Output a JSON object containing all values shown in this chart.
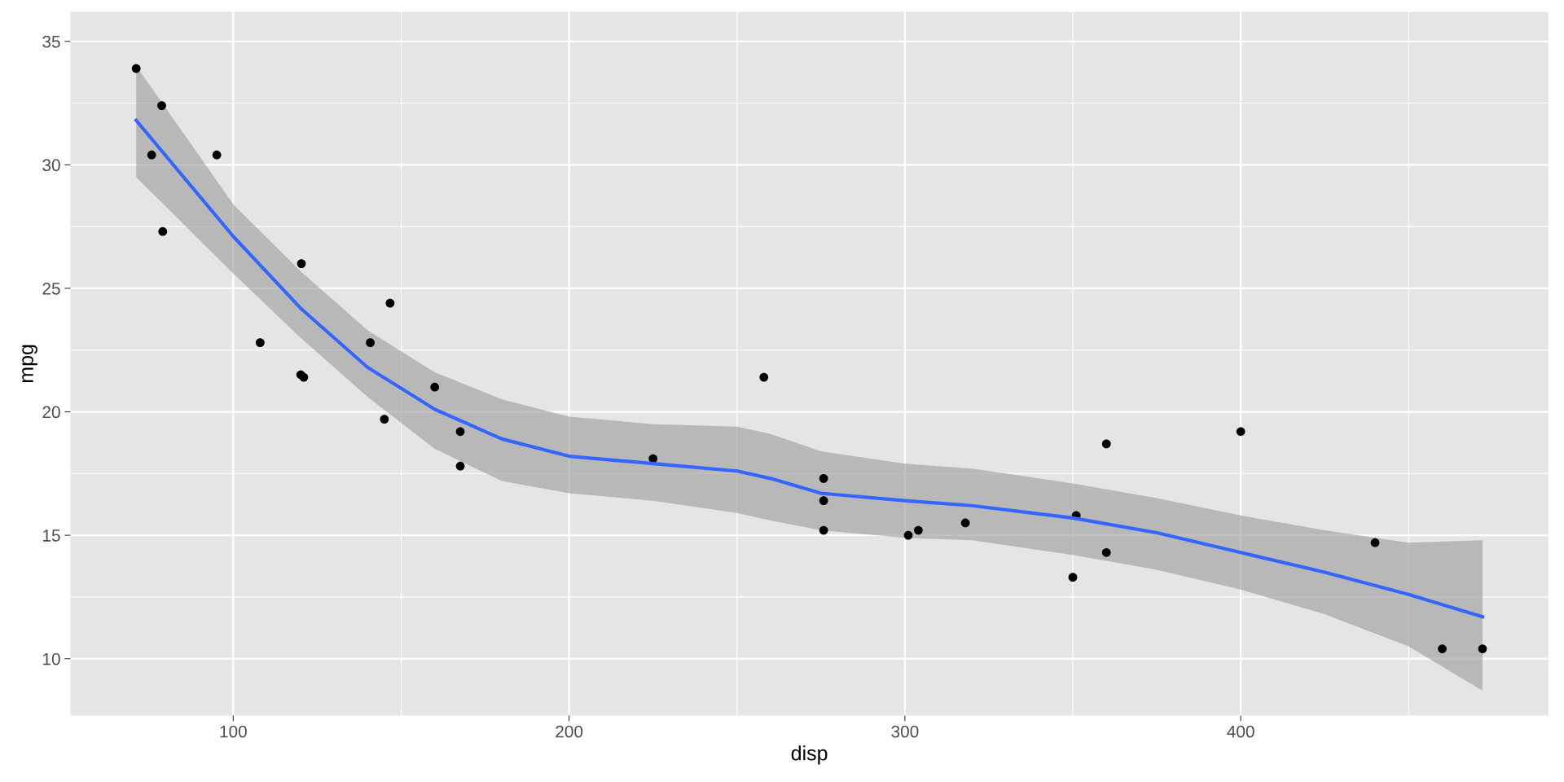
{
  "chart_data": {
    "type": "scatter",
    "xlabel": "disp",
    "ylabel": "mpg",
    "xlim": [
      51.5,
      491.6
    ],
    "ylim": [
      7.7,
      36.2
    ],
    "xticks": [
      100,
      200,
      300,
      400
    ],
    "yticks": [
      10,
      15,
      20,
      25,
      30,
      35
    ],
    "grid": true,
    "series": [
      {
        "marker": "circle",
        "color": "#000000",
        "x": [
          160,
          108,
          258,
          360,
          225,
          360,
          146.7,
          140.8,
          167.6,
          167.6,
          275.8,
          275.8,
          275.8,
          472,
          460,
          440,
          78.7,
          75.7,
          71.1,
          120.1,
          318,
          304,
          350,
          400,
          79,
          120.3,
          95.1,
          351,
          145,
          301,
          121
        ],
        "values": [
          21.0,
          22.8,
          21.4,
          18.7,
          18.1,
          14.3,
          24.4,
          22.8,
          19.2,
          17.8,
          16.4,
          17.3,
          15.2,
          10.4,
          10.4,
          14.7,
          32.4,
          30.4,
          33.9,
          21.5,
          15.5,
          15.2,
          13.3,
          19.2,
          27.3,
          26.0,
          30.4,
          15.8,
          19.7,
          15.0,
          21.4
        ]
      },
      {
        "type": "line",
        "color": "#3366ff",
        "x": [
          71.1,
          100,
          120,
          140,
          160,
          180,
          200,
          225,
          250,
          260,
          275,
          300,
          320,
          350,
          375,
          400,
          425,
          450,
          472
        ],
        "values": [
          31.8,
          27.1,
          24.2,
          21.8,
          20.1,
          18.9,
          18.2,
          17.9,
          17.6,
          17.3,
          16.7,
          16.4,
          16.2,
          15.7,
          15.1,
          14.3,
          13.5,
          12.6,
          11.7
        ],
        "lower": [
          29.5,
          25.6,
          23.0,
          20.6,
          18.5,
          17.2,
          16.7,
          16.4,
          15.9,
          15.6,
          15.2,
          14.9,
          14.8,
          14.2,
          13.6,
          12.8,
          11.8,
          10.5,
          8.7
        ],
        "upper": [
          34.0,
          28.4,
          25.7,
          23.3,
          21.6,
          20.5,
          19.8,
          19.5,
          19.4,
          19.1,
          18.4,
          17.9,
          17.7,
          17.1,
          16.5,
          15.8,
          15.2,
          14.7,
          14.8
        ]
      }
    ]
  }
}
